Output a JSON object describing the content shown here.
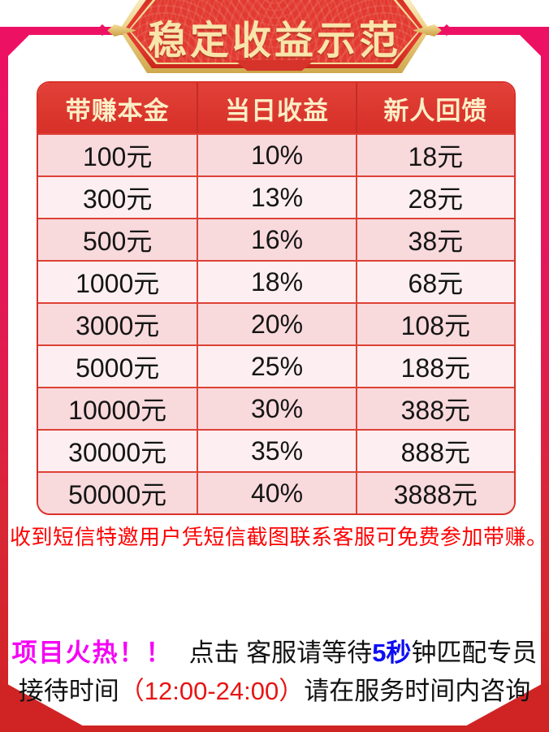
{
  "banner": {
    "title": "稳定收益示范"
  },
  "table": {
    "headers": [
      "带赚本金",
      "当日收益",
      "新人回馈"
    ],
    "rows": [
      [
        "100元",
        "10%",
        "18元"
      ],
      [
        "300元",
        "13%",
        "28元"
      ],
      [
        "500元",
        "16%",
        "38元"
      ],
      [
        "1000元",
        "18%",
        "68元"
      ],
      [
        "3000元",
        "20%",
        "108元"
      ],
      [
        "5000元",
        "25%",
        "188元"
      ],
      [
        "10000元",
        "30%",
        "388元"
      ],
      [
        "30000元",
        "35%",
        "888元"
      ],
      [
        "50000元",
        "40%",
        "3888元"
      ]
    ]
  },
  "notice": "收到短信特邀用户凭短信截图联系客服可免费参加带赚。",
  "footer": {
    "hot": "项目火热！！",
    "click": "点击 客服请等待",
    "seconds": "5秒",
    "match": "钟匹配专员",
    "time_prefix": "接待时间",
    "time": "（12:00-24:00）",
    "time_suffix": "请在服务时间内咨询"
  },
  "colors": {
    "frame_pink": "#ed1164",
    "frame_red": "#d02424",
    "banner_gold": "#eed389",
    "banner_red": "#e23a30",
    "banner_title_gold": "#f8e5ab",
    "header_red": "#d73028",
    "header_text": "#fceec6",
    "row_dark": "#f8d9dc",
    "row_light": "#fdeff1",
    "cell_border": "#dd4237",
    "notice_red": "#fe0000",
    "hot_magenta": "#f502f5",
    "seconds_blue": "#0d0df5",
    "time_red": "#e81414"
  }
}
